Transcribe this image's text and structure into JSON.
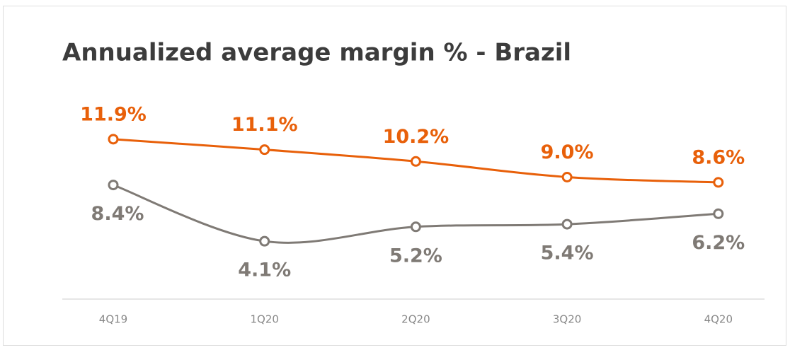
{
  "chart_data": {
    "type": "line",
    "title": "Annualized average margin % - Brazil",
    "categories": [
      "4Q19",
      "1Q20",
      "2Q20",
      "3Q20",
      "4Q20"
    ],
    "series": [
      {
        "color": "#e8600a",
        "values": [
          11.9,
          11.1,
          10.2,
          9.0,
          8.6
        ],
        "value_labels": [
          "11.9%",
          "11.1%",
          "10.2%",
          "9.0%",
          "8.6%"
        ]
      },
      {
        "color": "#7f7a75",
        "values": [
          8.4,
          4.1,
          5.2,
          5.4,
          6.2
        ],
        "value_labels": [
          "8.4%",
          "4.1%",
          "5.2%",
          "5.4%",
          "6.2%"
        ]
      }
    ]
  }
}
